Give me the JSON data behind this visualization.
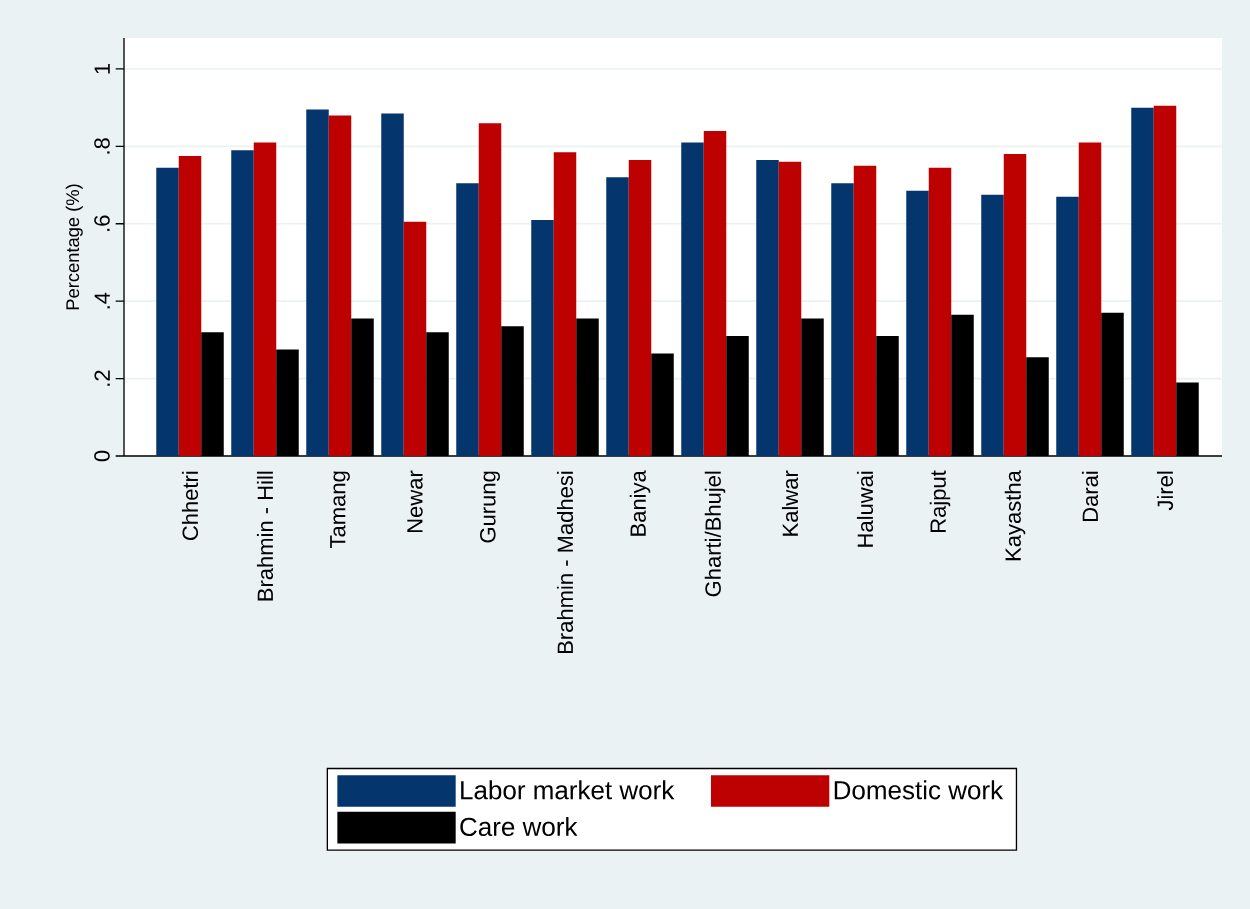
{
  "chart_data": {
    "type": "bar",
    "ylabel": "Percentage (%)",
    "categories": [
      "Chhetri",
      "Brahmin - Hill",
      "Tamang",
      "Newar",
      "Gurung",
      "Brahmin - Madhesi",
      "Baniya",
      "Gharti/Bhujel",
      "Kalwar",
      "Haluwai",
      "Rajput",
      "Kayastha",
      "Darai",
      "Jirel"
    ],
    "series": [
      {
        "name": "Labor market work",
        "color": "#04356c",
        "values": [
          0.745,
          0.79,
          0.895,
          0.885,
          0.705,
          0.61,
          0.72,
          0.81,
          0.765,
          0.705,
          0.685,
          0.675,
          0.67,
          0.9
        ]
      },
      {
        "name": "Domestic work",
        "color": "#bd0000",
        "values": [
          0.775,
          0.81,
          0.88,
          0.605,
          0.86,
          0.785,
          0.765,
          0.84,
          0.76,
          0.75,
          0.745,
          0.78,
          0.81,
          0.905
        ]
      },
      {
        "name": "Care work",
        "color": "#000000",
        "values": [
          0.32,
          0.275,
          0.355,
          0.32,
          0.335,
          0.355,
          0.265,
          0.31,
          0.355,
          0.31,
          0.365,
          0.255,
          0.37,
          0.19
        ]
      }
    ],
    "ylim": [
      0,
      1.08
    ],
    "yticks": [
      0,
      {
        "value": 0.2,
        "label": ".2"
      },
      {
        "value": 0.4,
        "label": ".4"
      },
      {
        "value": 0.6,
        "label": ".6"
      },
      {
        "value": 0.8,
        "label": ".8"
      },
      1
    ],
    "grid": "y",
    "legend": "bottom"
  }
}
